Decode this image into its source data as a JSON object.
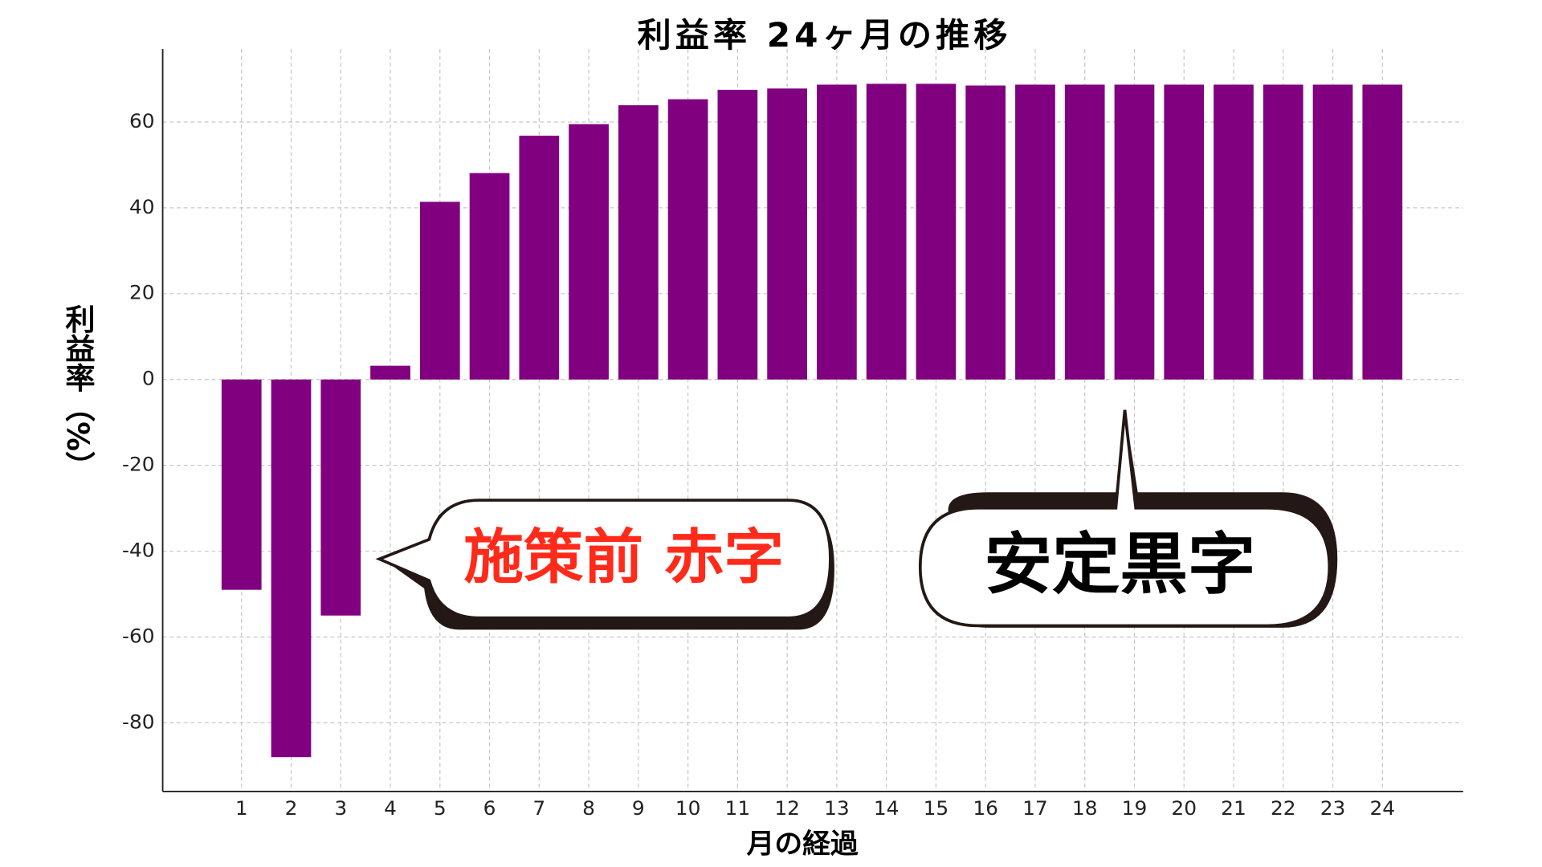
{
  "chart_data": {
    "type": "bar",
    "title": "利益率 24ヶ月の推移",
    "x_label": "月の経過",
    "y_label": "利益率（%）",
    "categories": [
      "1",
      "2",
      "3",
      "4",
      "5",
      "6",
      "7",
      "8",
      "9",
      "10",
      "11",
      "12",
      "13",
      "14",
      "15",
      "16",
      "17",
      "18",
      "19",
      "20",
      "21",
      "22",
      "23",
      "24"
    ],
    "values": [
      -49,
      -88,
      -55,
      3.2,
      41.4,
      48.1,
      56.8,
      59.5,
      63.9,
      65.3,
      67.5,
      67.8,
      68.7,
      68.9,
      68.9,
      68.5,
      68.7,
      68.7,
      68.7,
      68.7,
      68.7,
      68.7,
      68.7,
      68.7
    ],
    "color": "#800080",
    "ylim": [
      -96,
      77
    ],
    "yticks": [
      -80,
      -60,
      -40,
      -20,
      0,
      20,
      40,
      60
    ],
    "grid": true,
    "annotations": [
      {
        "text": "施策前 赤字",
        "color": "#ff2a1a"
      },
      {
        "text": "安定黒字",
        "color": "#000000"
      }
    ]
  }
}
